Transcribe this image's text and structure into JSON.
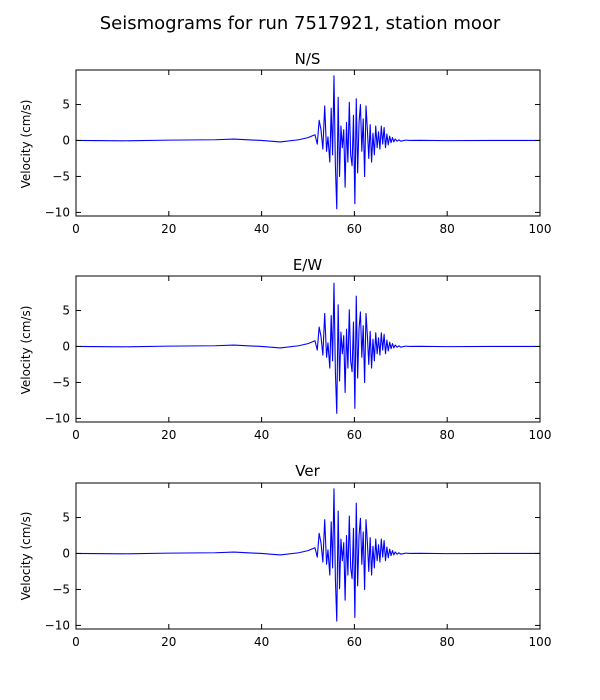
{
  "figure": {
    "title": "Seismograms for run 7517921, station moor"
  },
  "chart_data": [
    {
      "type": "line",
      "title": "N/S",
      "xlabel": "",
      "ylabel": "Velocity (cm/s)",
      "xlim": [
        0,
        100
      ],
      "ylim": [
        -10.5,
        9.8
      ],
      "xticks": [
        0,
        20,
        40,
        60,
        80,
        100
      ],
      "yticks": [
        -10,
        -5,
        0,
        5
      ],
      "grid": false,
      "series": [
        {
          "color": "#0000ff",
          "x": [
            0,
            10,
            20,
            30,
            34,
            40,
            44,
            48,
            50,
            51.5,
            52,
            52.4,
            52.8,
            53.2,
            53.6,
            54.0,
            54.3,
            54.7,
            55.0,
            55.3,
            55.6,
            55.9,
            56.2,
            56.5,
            56.8,
            57.1,
            57.4,
            57.7,
            58.0,
            58.3,
            58.6,
            58.9,
            59.2,
            59.5,
            59.8,
            60.1,
            60.4,
            60.7,
            61.0,
            61.3,
            61.6,
            61.9,
            62.2,
            62.5,
            62.8,
            63.1,
            63.4,
            63.7,
            64.0,
            64.3,
            64.6,
            64.9,
            65.2,
            65.5,
            65.8,
            66.1,
            66.4,
            66.7,
            67.0,
            67.3,
            67.6,
            67.9,
            68.2,
            68.5,
            68.8,
            69.2,
            69.6,
            70.0,
            71,
            72,
            74,
            80,
            90,
            100
          ],
          "y": [
            0,
            -0.05,
            0.05,
            0.1,
            0.2,
            0.0,
            -0.2,
            0.1,
            0.4,
            0.8,
            -0.5,
            2.8,
            1.5,
            -1.2,
            4.8,
            -1.5,
            0.5,
            -3.0,
            4.5,
            -2.0,
            9.0,
            -3.5,
            -9.5,
            6.0,
            -5.0,
            2.0,
            -1.0,
            1.5,
            -6.5,
            2.5,
            -3.0,
            5.3,
            -2.0,
            -3.5,
            3.5,
            -8.8,
            5.8,
            -4.5,
            2.5,
            5.0,
            -1.5,
            3.0,
            -5.0,
            4.8,
            1.5,
            -2.5,
            2.2,
            -3.0,
            1.0,
            -2.0,
            2.0,
            -1.0,
            1.2,
            -1.2,
            2.0,
            -0.5,
            1.8,
            -1.0,
            0.9,
            -0.6,
            0.6,
            -0.3,
            0.4,
            -0.2,
            0.2,
            -0.1,
            0.1,
            -0.1,
            0.05,
            0.0,
            0.02,
            -0.02,
            0.0,
            0.0
          ]
        }
      ]
    },
    {
      "type": "line",
      "title": "E/W",
      "xlabel": "",
      "ylabel": "Velocity (cm/s)",
      "xlim": [
        0,
        100
      ],
      "ylim": [
        -10.5,
        9.8
      ],
      "xticks": [
        0,
        20,
        40,
        60,
        80,
        100
      ],
      "yticks": [
        -10,
        -5,
        0,
        5
      ],
      "grid": false,
      "series": [
        {
          "color": "#0000ff",
          "x": [
            0,
            10,
            20,
            30,
            34,
            40,
            44,
            48,
            50,
            51.5,
            52,
            52.4,
            52.8,
            53.2,
            53.6,
            54.0,
            54.3,
            54.7,
            55.0,
            55.3,
            55.6,
            55.9,
            56.2,
            56.5,
            56.8,
            57.1,
            57.4,
            57.7,
            58.0,
            58.3,
            58.6,
            58.9,
            59.2,
            59.5,
            59.8,
            60.1,
            60.4,
            60.7,
            61.0,
            61.3,
            61.6,
            61.9,
            62.2,
            62.5,
            62.8,
            63.1,
            63.4,
            63.7,
            64.0,
            64.3,
            64.6,
            64.9,
            65.2,
            65.5,
            65.8,
            66.1,
            66.4,
            66.7,
            67.0,
            67.3,
            67.6,
            67.9,
            68.2,
            68.5,
            68.8,
            69.2,
            69.6,
            70.0,
            71,
            72,
            74,
            80,
            90,
            100
          ],
          "y": [
            0,
            -0.05,
            0.05,
            0.1,
            0.2,
            0.0,
            -0.2,
            0.1,
            0.4,
            0.8,
            -0.5,
            2.7,
            1.4,
            -1.2,
            4.6,
            -1.5,
            0.5,
            -3.0,
            4.3,
            -2.0,
            8.8,
            -3.5,
            -9.3,
            5.8,
            -4.8,
            2.0,
            -1.0,
            1.5,
            -6.4,
            2.4,
            -3.0,
            5.1,
            -2.0,
            -3.5,
            3.4,
            -8.6,
            7.0,
            -4.4,
            2.5,
            4.8,
            -1.5,
            2.9,
            -5.0,
            4.6,
            1.5,
            -2.5,
            2.1,
            -3.0,
            1.0,
            -2.0,
            1.9,
            -1.0,
            1.2,
            -1.2,
            1.9,
            -0.5,
            1.7,
            -1.0,
            0.9,
            -0.6,
            0.6,
            -0.3,
            0.4,
            -0.2,
            0.2,
            -0.1,
            0.1,
            -0.1,
            0.05,
            0.0,
            0.02,
            -0.02,
            0.0,
            0.0
          ]
        }
      ]
    },
    {
      "type": "line",
      "title": "Ver",
      "xlabel": "",
      "ylabel": "Velocity (cm/s)",
      "xlim": [
        0,
        100
      ],
      "ylim": [
        -10.5,
        9.8
      ],
      "xticks": [
        0,
        20,
        40,
        60,
        80,
        100
      ],
      "yticks": [
        -10,
        -5,
        0,
        5
      ],
      "grid": false,
      "series": [
        {
          "color": "#0000ff",
          "x": [
            0,
            10,
            20,
            30,
            34,
            40,
            44,
            48,
            50,
            51.5,
            52,
            52.4,
            52.8,
            53.2,
            53.6,
            54.0,
            54.3,
            54.7,
            55.0,
            55.3,
            55.6,
            55.9,
            56.2,
            56.5,
            56.8,
            57.1,
            57.4,
            57.7,
            58.0,
            58.3,
            58.6,
            58.9,
            59.2,
            59.5,
            59.8,
            60.1,
            60.4,
            60.7,
            61.0,
            61.3,
            61.6,
            61.9,
            62.2,
            62.5,
            62.8,
            63.1,
            63.4,
            63.7,
            64.0,
            64.3,
            64.6,
            64.9,
            65.2,
            65.5,
            65.8,
            66.1,
            66.4,
            66.7,
            67.0,
            67.3,
            67.6,
            67.9,
            68.2,
            68.5,
            68.8,
            69.2,
            69.6,
            70.0,
            71,
            72,
            74,
            80,
            90,
            100
          ],
          "y": [
            0,
            -0.05,
            0.05,
            0.1,
            0.2,
            0.0,
            -0.2,
            0.1,
            0.4,
            0.8,
            -0.5,
            2.8,
            1.5,
            -1.2,
            4.7,
            -1.5,
            0.5,
            -3.0,
            4.4,
            -2.0,
            9.0,
            -3.5,
            -9.4,
            5.9,
            -4.9,
            2.0,
            -1.0,
            1.5,
            -6.5,
            2.5,
            -3.0,
            5.2,
            -2.0,
            -3.5,
            3.5,
            -8.9,
            7.0,
            -4.5,
            2.5,
            4.9,
            -1.5,
            3.0,
            -5.0,
            4.7,
            1.5,
            -2.5,
            2.2,
            -3.0,
            1.0,
            -2.0,
            2.0,
            -1.0,
            1.2,
            -1.2,
            2.0,
            -0.5,
            1.8,
            -1.0,
            0.9,
            -0.6,
            0.6,
            -0.3,
            0.4,
            -0.2,
            0.2,
            -0.1,
            0.1,
            -0.1,
            0.05,
            0.0,
            0.02,
            -0.02,
            0.0,
            0.0
          ]
        }
      ]
    }
  ]
}
